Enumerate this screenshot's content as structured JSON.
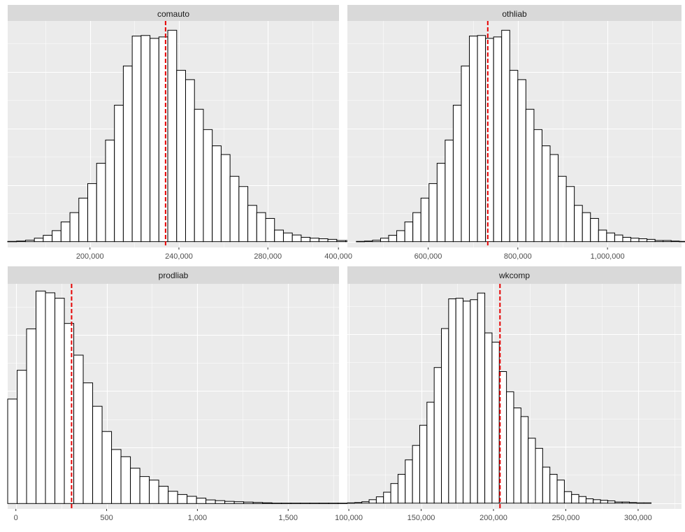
{
  "colors": {
    "panel_bg": "#EBEBEB",
    "strip_bg": "#D9D9D9",
    "grid_major": "#FFFFFF",
    "bar_fill": "#FFFFFF",
    "bar_stroke": "#000000",
    "mean_line": "#E60000",
    "tick_text": "#4D4D4D",
    "strip_text": "#1A1A1A"
  },
  "chart_data": [
    {
      "type": "bar",
      "title": "comauto",
      "xlim": [
        163000,
        312000
      ],
      "xticks": [
        200000,
        240000,
        280000
      ],
      "xtick_labels": [
        "200,000",
        "240,000",
        "280,000"
      ],
      "minor_xticks": [
        180000,
        220000,
        260000,
        300000
      ],
      "bin_start": 163000,
      "bin_width": 4000,
      "counts": [
        1,
        2,
        5,
        12,
        22,
        38,
        68,
        100,
        150,
        200,
        270,
        350,
        470,
        605,
        708,
        710,
        700,
        705,
        728,
        590,
        558,
        456,
        386,
        330,
        300,
        225,
        190,
        125,
        100,
        80,
        40,
        30,
        23,
        15,
        12,
        10,
        8,
        4,
        4,
        2,
        1
      ],
      "ylim": [
        -20,
        760
      ],
      "mean": 234000
    },
    {
      "type": "bar",
      "title": "othliab",
      "xlim": [
        420000,
        1165000
      ],
      "xticks": [
        400000,
        600000,
        800000,
        1000000
      ],
      "xtick_labels": [
        "400,000",
        "600,000",
        "800,000",
        "1,000,000"
      ],
      "minor_xticks": [
        500000,
        700000,
        900000,
        1100000
      ],
      "bin_start": 440000,
      "bin_width": 18000,
      "counts": [
        1,
        2,
        5,
        12,
        22,
        38,
        68,
        100,
        150,
        200,
        270,
        350,
        470,
        605,
        708,
        710,
        700,
        705,
        728,
        590,
        558,
        456,
        386,
        330,
        300,
        225,
        190,
        125,
        100,
        80,
        40,
        30,
        23,
        15,
        12,
        10,
        8,
        4,
        4,
        2,
        1
      ],
      "ylim": [
        -20,
        760
      ],
      "mean": 733000
    },
    {
      "type": "bar",
      "title": "prodliab",
      "xlim": [
        -45,
        1780
      ],
      "xticks": [
        0,
        500,
        1000,
        1500
      ],
      "xtick_labels": [
        "0",
        "500",
        "1,000",
        "1,500"
      ],
      "minor_xticks": [
        250,
        750,
        1250,
        1750
      ],
      "bin_start": -45,
      "bin_width": 52,
      "counts": [
        290,
        370,
        485,
        590,
        585,
        570,
        500,
        412,
        335,
        270,
        200,
        150,
        130,
        98,
        75,
        65,
        48,
        34,
        25,
        20,
        15,
        10,
        8,
        6,
        5,
        4,
        3,
        2,
        1,
        1,
        1,
        1,
        1,
        1,
        1,
        1
      ],
      "ylim": [
        -15,
        610
      ],
      "mean": 307
    },
    {
      "type": "bar",
      "title": "wkcomp",
      "xlim": [
        99000,
        330000
      ],
      "xticks": [
        100000,
        150000,
        200000,
        250000,
        300000
      ],
      "xtick_labels": [
        "100,000",
        "150,000",
        "200,000",
        "250,000",
        "300,000"
      ],
      "minor_xticks": [
        125000,
        175000,
        225000,
        275000,
        325000
      ],
      "bin_start": 99000,
      "bin_width": 5000,
      "counts": [
        1,
        2,
        5,
        12,
        22,
        38,
        68,
        100,
        150,
        200,
        270,
        350,
        470,
        605,
        708,
        710,
        700,
        705,
        728,
        590,
        558,
        456,
        386,
        330,
        300,
        225,
        190,
        125,
        100,
        80,
        40,
        30,
        23,
        15,
        12,
        10,
        8,
        4,
        4,
        2,
        1,
        1
      ],
      "ylim": [
        -20,
        760
      ],
      "mean": 204500
    }
  ]
}
